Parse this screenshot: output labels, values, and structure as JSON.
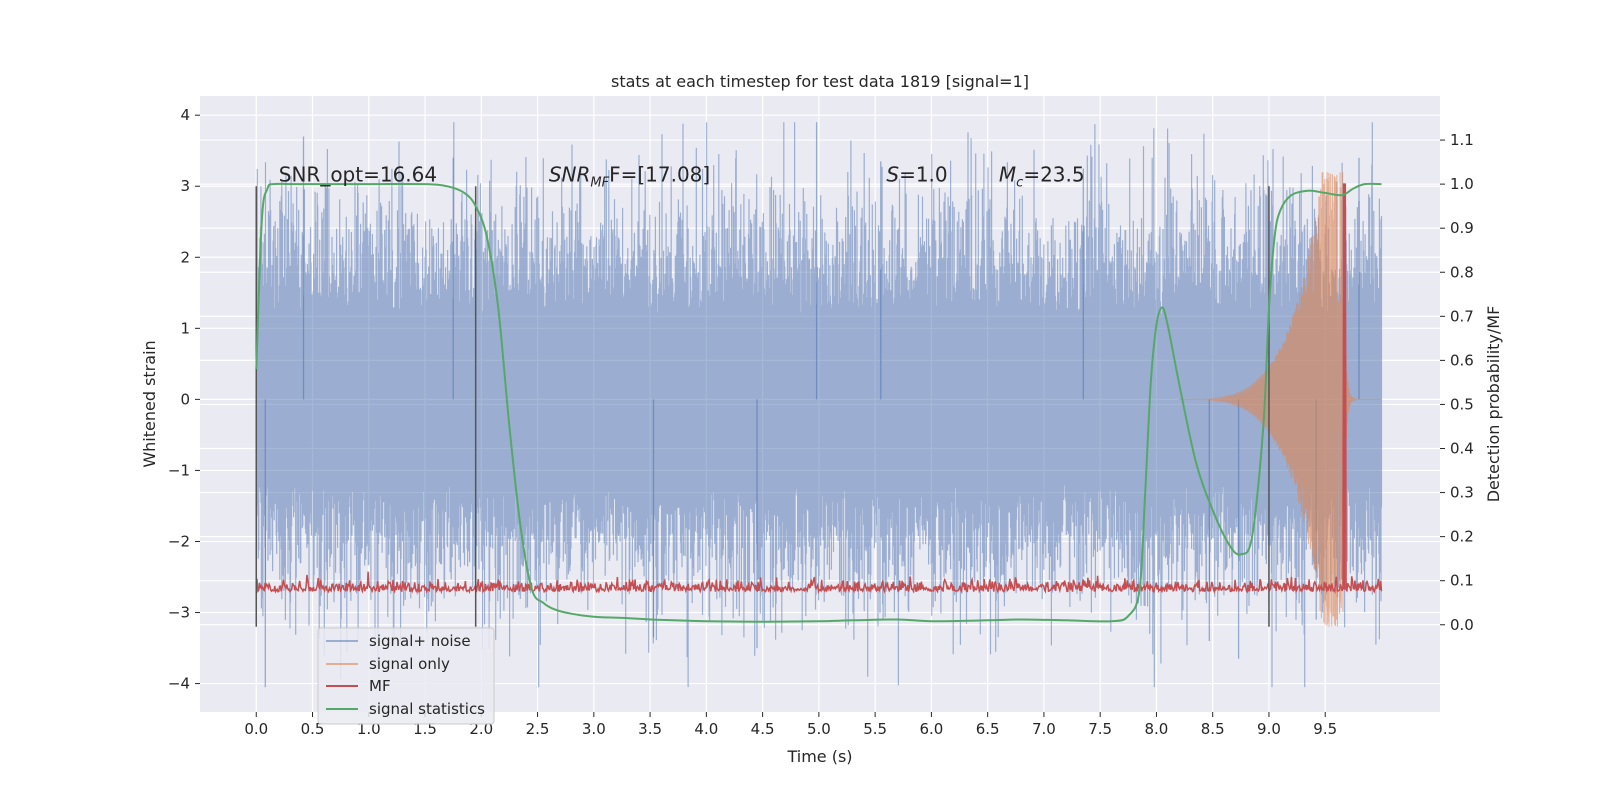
{
  "chart_data": {
    "type": "line",
    "title": "stats at each timestep for test data 1819 [signal=1]",
    "xlabel": "Time (s)",
    "ylabel": "Whitened strain",
    "y2label": "Detection probability/MF",
    "xlim": [
      -0.5,
      10.52
    ],
    "ylim": [
      -4.4,
      4.27
    ],
    "y2lim": [
      -0.198,
      1.2
    ],
    "xticks": [
      "0.0",
      "0.5",
      "1.0",
      "1.5",
      "2.0",
      "2.5",
      "3.0",
      "3.5",
      "4.0",
      "4.5",
      "5.0",
      "5.5",
      "6.0",
      "6.5",
      "7.0",
      "7.5",
      "8.0",
      "8.5",
      "9.0",
      "9.5"
    ],
    "yticks": [
      "−4",
      "−3",
      "−2",
      "−1",
      "0",
      "1",
      "2",
      "3",
      "4"
    ],
    "y2ticks": [
      "0.0",
      "0.1",
      "0.2",
      "0.3",
      "0.4",
      "0.5",
      "0.6",
      "0.7",
      "0.8",
      "0.9",
      "1.0",
      "1.1"
    ],
    "grid": true,
    "legend_position": "bottom-left",
    "colors": {
      "background": "#eaeaf2",
      "noise": "#4c72b0",
      "signal": "#dd8452",
      "mf": "#c44e52",
      "stat": "#55a868",
      "vline": "#555555"
    },
    "series": [
      {
        "name": "signal+ noise",
        "x_range": [
          0,
          10
        ],
        "envelope_description_values": {
          "typical_abs_max": 2.8,
          "min": -4.05,
          "max": 3.9
        }
      },
      {
        "name": "signal only",
        "chirp_start": 8.2,
        "chirp_peak_time": 9.66,
        "chirp_peak_amplitude": 3.2
      },
      {
        "name": "MF",
        "baseline": 0.08,
        "peak_time": 9.67,
        "peak_value": 1.0
      },
      {
        "name": "signal statistics",
        "x": [
          0.0,
          0.05,
          0.1,
          0.15,
          0.3,
          0.5,
          1.0,
          1.5,
          1.7,
          1.85,
          1.95,
          2.05,
          2.15,
          2.25,
          2.35,
          2.45,
          2.55,
          2.65,
          2.8,
          3.0,
          3.3,
          3.6,
          4.0,
          4.5,
          5.0,
          5.3,
          5.7,
          6.0,
          6.5,
          6.8,
          7.2,
          7.6,
          7.75,
          7.85,
          7.9,
          7.95,
          8.0,
          8.05,
          8.1,
          8.2,
          8.35,
          8.5,
          8.65,
          8.75,
          8.85,
          8.95,
          9.0,
          9.05,
          9.1,
          9.2,
          9.35,
          9.5,
          9.65,
          9.75,
          9.85,
          10.0
        ],
        "y": [
          0.58,
          0.92,
          0.99,
          1.0,
          1.0,
          1.0,
          1.0,
          1.0,
          0.995,
          0.98,
          0.95,
          0.88,
          0.72,
          0.45,
          0.22,
          0.08,
          0.05,
          0.035,
          0.025,
          0.018,
          0.015,
          0.011,
          0.008,
          0.007,
          0.008,
          0.01,
          0.012,
          0.008,
          0.01,
          0.012,
          0.01,
          0.008,
          0.02,
          0.08,
          0.3,
          0.55,
          0.68,
          0.72,
          0.68,
          0.55,
          0.37,
          0.26,
          0.18,
          0.16,
          0.2,
          0.45,
          0.72,
          0.88,
          0.94,
          0.975,
          0.985,
          0.98,
          0.975,
          0.99,
          1.0,
          1.0
        ]
      }
    ],
    "vlines_x": [
      0.0,
      1.95,
      9.0
    ],
    "vlines_range": [
      -3.2,
      3.0
    ],
    "annotations": [
      {
        "id": "snr_opt",
        "x": 0.2,
        "y": 3.07,
        "text": "SNR_opt=16.64"
      },
      {
        "id": "snr_mf",
        "x": 2.6,
        "y": 3.07,
        "text_prefix": "SNR",
        "text_sub": "MF",
        "text_suffix": "F=[17.08]"
      },
      {
        "id": "s_value",
        "x": 5.6,
        "y": 3.07,
        "text_prefix": "S",
        "text_suffix": "=1.0"
      },
      {
        "id": "mc_value",
        "x": 6.6,
        "y": 3.07,
        "text_prefix": "M",
        "text_sub": "c",
        "text_suffix": "=23.5"
      }
    ]
  }
}
